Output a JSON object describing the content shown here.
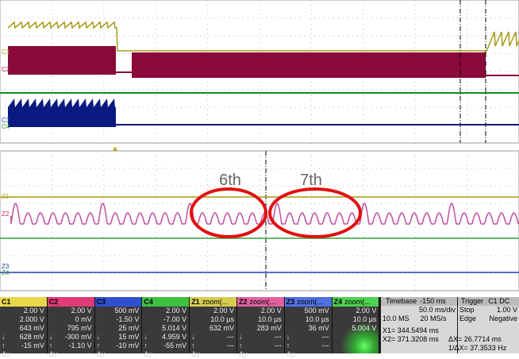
{
  "annotations": [
    "6th",
    "7th"
  ],
  "upper_markers": [
    "C1",
    "C2",
    "C3",
    "C4"
  ],
  "lower_markers": [
    "Z1",
    "Z2",
    "Z3",
    "Z4"
  ],
  "measure_symbols": [
    "↓",
    "↑",
    "Δy"
  ],
  "panels": [
    {
      "name": "C1",
      "settings": [
        "2.00 V",
        "2.000 V"
      ],
      "measures": [
        "643 mV",
        "628 mV",
        "-15 mV"
      ]
    },
    {
      "name": "C2",
      "settings": [
        "2.00 V",
        "0 mV"
      ],
      "measures": [
        "795 mV",
        "-300 mV",
        "-1.10 V"
      ]
    },
    {
      "name": "C3",
      "settings": [
        "500 mV",
        "-1.50 V"
      ],
      "measures": [
        "25 mV",
        "15 mV",
        "-10 mV"
      ]
    },
    {
      "name": "C4",
      "settings": [
        "2.00 V",
        "-7.00 V"
      ],
      "measures": [
        "5.014 V",
        "4.959 V",
        "-55 mV"
      ]
    },
    {
      "name": "Z1",
      "title": "zoom(...",
      "settings": [
        "2.00 V",
        "10.0 µs"
      ],
      "measures": [
        "632 mV",
        "---",
        "---"
      ]
    },
    {
      "name": "Z2",
      "title": "zoom(...",
      "settings": [
        "2.00 V",
        "10.0 µs"
      ],
      "measures": [
        "283 mV",
        "---",
        "---"
      ]
    },
    {
      "name": "Z3",
      "title": "zoom(...",
      "settings": [
        "500 mV",
        "10.0 µs"
      ],
      "measures": [
        "36 mV",
        "---",
        "---"
      ]
    },
    {
      "name": "Z4",
      "title": "zoom(...",
      "settings": [
        "2.00 V",
        "10.0 µs"
      ],
      "measures": [
        "5.004 V"
      ]
    }
  ],
  "timebase": {
    "label": "Timebase",
    "delay": "-150 ms",
    "scale": "50.0 ms/div",
    "samples": "10.0 MS",
    "rate": "20 MS/s",
    "x1": "X1= 344.5494 ms",
    "dx": "ΔX= 26.7714 ms",
    "x2": "X2= 371.3208 ms",
    "inv": "1/ΔX= 37.3533 Hz"
  },
  "trigger": {
    "label": "Trigger",
    "source": "C1 DC",
    "mode": "Stop",
    "level": "1.00 V",
    "type": "Edge",
    "slope": "Negative"
  }
}
